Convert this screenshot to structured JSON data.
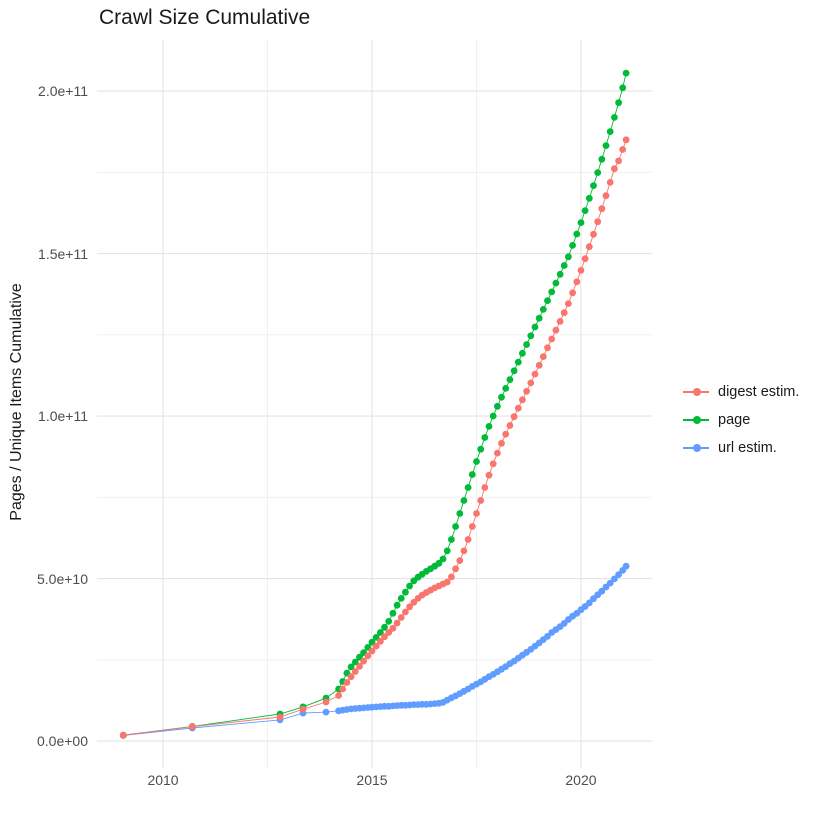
{
  "title": "Crawl Size Cumulative",
  "y_axis_title": "Pages / Unique Items Cumulative",
  "colors": {
    "digest": "#F8766D",
    "page": "#00BA38",
    "url": "#619CFF",
    "grid_major": "#E4E4E4",
    "grid_minor": "#EFEFEF",
    "tick_text": "#4d4d4d",
    "title_text": "#1a1a1a",
    "background": "#ffffff"
  },
  "legend": {
    "items": [
      {
        "label": "digest estim.",
        "color": "#F8766D"
      },
      {
        "label": "page",
        "color": "#00BA38"
      },
      {
        "label": "url estim.",
        "color": "#619CFF"
      }
    ]
  },
  "chart_data": {
    "type": "scatter",
    "title": "Crawl Size Cumulative",
    "xlabel": "",
    "ylabel": "Pages / Unique Items Cumulative",
    "y_unit": "pages, values in billions (1e9)",
    "xlim": [
      2008.42,
      2021.7
    ],
    "ylim_e9": [
      -8.3,
      215.7
    ],
    "grid": true,
    "legend_position": "right",
    "x_ticks": {
      "values": [
        2010,
        2015,
        2020
      ],
      "labels": [
        "2010",
        "2015",
        "2020"
      ],
      "minor": [
        2012.5,
        2017.5
      ]
    },
    "y_ticks": {
      "values_e9": [
        0,
        50,
        100,
        150,
        200
      ],
      "labels": [
        "0.0e+00",
        "5.0e+10",
        "1.0e+11",
        "1.5e+11",
        "2.0e+11"
      ],
      "minor_e9": [
        25,
        75,
        125,
        175
      ]
    },
    "series": [
      {
        "name": "digest estim.",
        "color": "#F8766D",
        "points": [
          [
            2009.05,
            1.8
          ],
          [
            2010.7,
            4.4
          ],
          [
            2012.8,
            7.4
          ],
          [
            2013.35,
            9.8
          ],
          [
            2013.9,
            12.0
          ],
          [
            2014.2,
            14.0
          ],
          [
            2014.3,
            16.0
          ],
          [
            2014.4,
            18.0
          ],
          [
            2014.5,
            19.8
          ],
          [
            2014.6,
            21.4
          ],
          [
            2014.7,
            23.0
          ],
          [
            2014.8,
            24.6
          ],
          [
            2014.9,
            26.2
          ],
          [
            2015.0,
            27.7
          ],
          [
            2015.1,
            29.2
          ],
          [
            2015.2,
            30.7
          ],
          [
            2015.3,
            32.1
          ],
          [
            2015.4,
            33.4
          ],
          [
            2015.5,
            34.7
          ],
          [
            2015.6,
            36.3
          ],
          [
            2015.7,
            38.0
          ],
          [
            2015.8,
            39.7
          ],
          [
            2015.9,
            41.3
          ],
          [
            2016.0,
            42.7
          ],
          [
            2016.1,
            43.9
          ],
          [
            2016.2,
            44.9
          ],
          [
            2016.3,
            45.7
          ],
          [
            2016.4,
            46.4
          ],
          [
            2016.5,
            47.1
          ],
          [
            2016.6,
            47.7
          ],
          [
            2016.7,
            48.3
          ],
          [
            2016.8,
            48.9
          ],
          [
            2016.9,
            50.5
          ],
          [
            2017.0,
            53.0
          ],
          [
            2017.1,
            55.5
          ],
          [
            2017.2,
            58.5
          ],
          [
            2017.3,
            62.0
          ],
          [
            2017.4,
            66.0
          ],
          [
            2017.5,
            70.0
          ],
          [
            2017.6,
            74.0
          ],
          [
            2017.7,
            78.0
          ],
          [
            2017.8,
            81.8
          ],
          [
            2017.9,
            85.3
          ],
          [
            2018.0,
            88.6
          ],
          [
            2018.1,
            91.6
          ],
          [
            2018.2,
            94.4
          ],
          [
            2018.3,
            97.1
          ],
          [
            2018.4,
            99.8
          ],
          [
            2018.5,
            102.4
          ],
          [
            2018.6,
            105.0
          ],
          [
            2018.7,
            107.6
          ],
          [
            2018.8,
            110.2
          ],
          [
            2018.9,
            112.9
          ],
          [
            2019.0,
            115.6
          ],
          [
            2019.1,
            118.3
          ],
          [
            2019.2,
            121.0
          ],
          [
            2019.3,
            123.7
          ],
          [
            2019.4,
            126.4
          ],
          [
            2019.5,
            129.1
          ],
          [
            2019.6,
            131.8
          ],
          [
            2019.7,
            134.6
          ],
          [
            2019.8,
            137.9
          ],
          [
            2019.9,
            141.3
          ],
          [
            2020.0,
            144.8
          ],
          [
            2020.1,
            148.4
          ],
          [
            2020.2,
            152.1
          ],
          [
            2020.3,
            155.9
          ],
          [
            2020.4,
            159.8
          ],
          [
            2020.5,
            163.8
          ],
          [
            2020.6,
            167.8
          ],
          [
            2020.7,
            171.9
          ],
          [
            2020.8,
            176.1
          ],
          [
            2020.9,
            178.5
          ],
          [
            2021.0,
            182.0
          ],
          [
            2021.08,
            185.0
          ]
        ]
      },
      {
        "name": "page",
        "color": "#00BA38",
        "points": [
          [
            2009.05,
            1.8
          ],
          [
            2010.7,
            4.5
          ],
          [
            2012.8,
            8.3
          ],
          [
            2013.35,
            10.5
          ],
          [
            2013.9,
            13.2
          ],
          [
            2014.2,
            16.0
          ],
          [
            2014.3,
            18.3
          ],
          [
            2014.4,
            20.9
          ],
          [
            2014.5,
            22.8
          ],
          [
            2014.6,
            24.3
          ],
          [
            2014.7,
            25.8
          ],
          [
            2014.8,
            27.2
          ],
          [
            2014.9,
            28.8
          ],
          [
            2015.0,
            30.4
          ],
          [
            2015.1,
            31.9
          ],
          [
            2015.2,
            33.4
          ],
          [
            2015.3,
            35.0
          ],
          [
            2015.4,
            36.8
          ],
          [
            2015.5,
            39.3
          ],
          [
            2015.6,
            41.8
          ],
          [
            2015.7,
            43.9
          ],
          [
            2015.8,
            45.8
          ],
          [
            2015.9,
            47.7
          ],
          [
            2016.0,
            49.3
          ],
          [
            2016.1,
            50.4
          ],
          [
            2016.2,
            51.3
          ],
          [
            2016.3,
            52.2
          ],
          [
            2016.4,
            53.0
          ],
          [
            2016.5,
            53.8
          ],
          [
            2016.6,
            54.7
          ],
          [
            2016.7,
            56.0
          ],
          [
            2016.8,
            58.5
          ],
          [
            2016.9,
            62.0
          ],
          [
            2017.0,
            66.0
          ],
          [
            2017.1,
            70.0
          ],
          [
            2017.2,
            74.0
          ],
          [
            2017.3,
            78.0
          ],
          [
            2017.4,
            82.0
          ],
          [
            2017.5,
            86.0
          ],
          [
            2017.6,
            89.8
          ],
          [
            2017.7,
            93.4
          ],
          [
            2017.8,
            96.8
          ],
          [
            2017.9,
            100.0
          ],
          [
            2018.0,
            103.0
          ],
          [
            2018.1,
            105.8
          ],
          [
            2018.2,
            108.5
          ],
          [
            2018.3,
            111.2
          ],
          [
            2018.4,
            113.9
          ],
          [
            2018.5,
            116.6
          ],
          [
            2018.6,
            119.3
          ],
          [
            2018.7,
            122.0
          ],
          [
            2018.8,
            124.7
          ],
          [
            2018.9,
            127.4
          ],
          [
            2019.0,
            130.1
          ],
          [
            2019.1,
            132.8
          ],
          [
            2019.2,
            135.5
          ],
          [
            2019.3,
            138.2
          ],
          [
            2019.4,
            140.9
          ],
          [
            2019.5,
            143.6
          ],
          [
            2019.6,
            146.3
          ],
          [
            2019.7,
            149.0
          ],
          [
            2019.8,
            152.5
          ],
          [
            2019.9,
            156.0
          ],
          [
            2020.0,
            159.5
          ],
          [
            2020.1,
            163.2
          ],
          [
            2020.2,
            167.0
          ],
          [
            2020.3,
            170.9
          ],
          [
            2020.4,
            174.9
          ],
          [
            2020.5,
            179.0
          ],
          [
            2020.6,
            183.2
          ],
          [
            2020.7,
            187.5
          ],
          [
            2020.8,
            191.9
          ],
          [
            2020.9,
            196.4
          ],
          [
            2021.0,
            201.0
          ],
          [
            2021.08,
            205.5
          ]
        ]
      },
      {
        "name": "url estim.",
        "color": "#619CFF",
        "points": [
          [
            2009.05,
            1.7
          ],
          [
            2010.7,
            4.0
          ],
          [
            2012.8,
            6.5
          ],
          [
            2013.35,
            8.6
          ],
          [
            2013.9,
            8.9
          ],
          [
            2014.2,
            9.3
          ],
          [
            2014.3,
            9.5
          ],
          [
            2014.4,
            9.7
          ],
          [
            2014.5,
            9.9
          ],
          [
            2014.6,
            10.0
          ],
          [
            2014.7,
            10.1
          ],
          [
            2014.8,
            10.2
          ],
          [
            2014.9,
            10.3
          ],
          [
            2015.0,
            10.4
          ],
          [
            2015.1,
            10.5
          ],
          [
            2015.2,
            10.6
          ],
          [
            2015.3,
            10.7
          ],
          [
            2015.4,
            10.7
          ],
          [
            2015.5,
            10.8
          ],
          [
            2015.6,
            10.9
          ],
          [
            2015.7,
            11.0
          ],
          [
            2015.8,
            11.0
          ],
          [
            2015.9,
            11.1
          ],
          [
            2016.0,
            11.2
          ],
          [
            2016.1,
            11.2
          ],
          [
            2016.2,
            11.3
          ],
          [
            2016.3,
            11.3
          ],
          [
            2016.4,
            11.4
          ],
          [
            2016.5,
            11.5
          ],
          [
            2016.6,
            11.6
          ],
          [
            2016.7,
            11.9
          ],
          [
            2016.8,
            12.6
          ],
          [
            2016.9,
            13.3
          ],
          [
            2017.0,
            13.9
          ],
          [
            2017.1,
            14.6
          ],
          [
            2017.2,
            15.3
          ],
          [
            2017.3,
            16.0
          ],
          [
            2017.4,
            16.8
          ],
          [
            2017.5,
            17.5
          ],
          [
            2017.6,
            18.2
          ],
          [
            2017.7,
            19.0
          ],
          [
            2017.8,
            19.8
          ],
          [
            2017.9,
            20.5
          ],
          [
            2018.0,
            21.3
          ],
          [
            2018.1,
            22.1
          ],
          [
            2018.2,
            22.9
          ],
          [
            2018.3,
            23.8
          ],
          [
            2018.4,
            24.6
          ],
          [
            2018.5,
            25.5
          ],
          [
            2018.6,
            26.4
          ],
          [
            2018.7,
            27.3
          ],
          [
            2018.8,
            28.2
          ],
          [
            2018.9,
            29.2
          ],
          [
            2019.0,
            30.2
          ],
          [
            2019.1,
            31.2
          ],
          [
            2019.2,
            32.2
          ],
          [
            2019.3,
            33.4
          ],
          [
            2019.4,
            34.3
          ],
          [
            2019.5,
            35.2
          ],
          [
            2019.6,
            36.2
          ],
          [
            2019.7,
            37.4
          ],
          [
            2019.8,
            38.4
          ],
          [
            2019.9,
            39.3
          ],
          [
            2020.0,
            40.4
          ],
          [
            2020.1,
            41.4
          ],
          [
            2020.2,
            42.5
          ],
          [
            2020.3,
            43.8
          ],
          [
            2020.4,
            45.0
          ],
          [
            2020.5,
            46.1
          ],
          [
            2020.6,
            47.4
          ],
          [
            2020.7,
            48.6
          ],
          [
            2020.8,
            49.9
          ],
          [
            2020.9,
            51.2
          ],
          [
            2021.0,
            52.5
          ],
          [
            2021.08,
            53.8
          ]
        ]
      }
    ]
  }
}
